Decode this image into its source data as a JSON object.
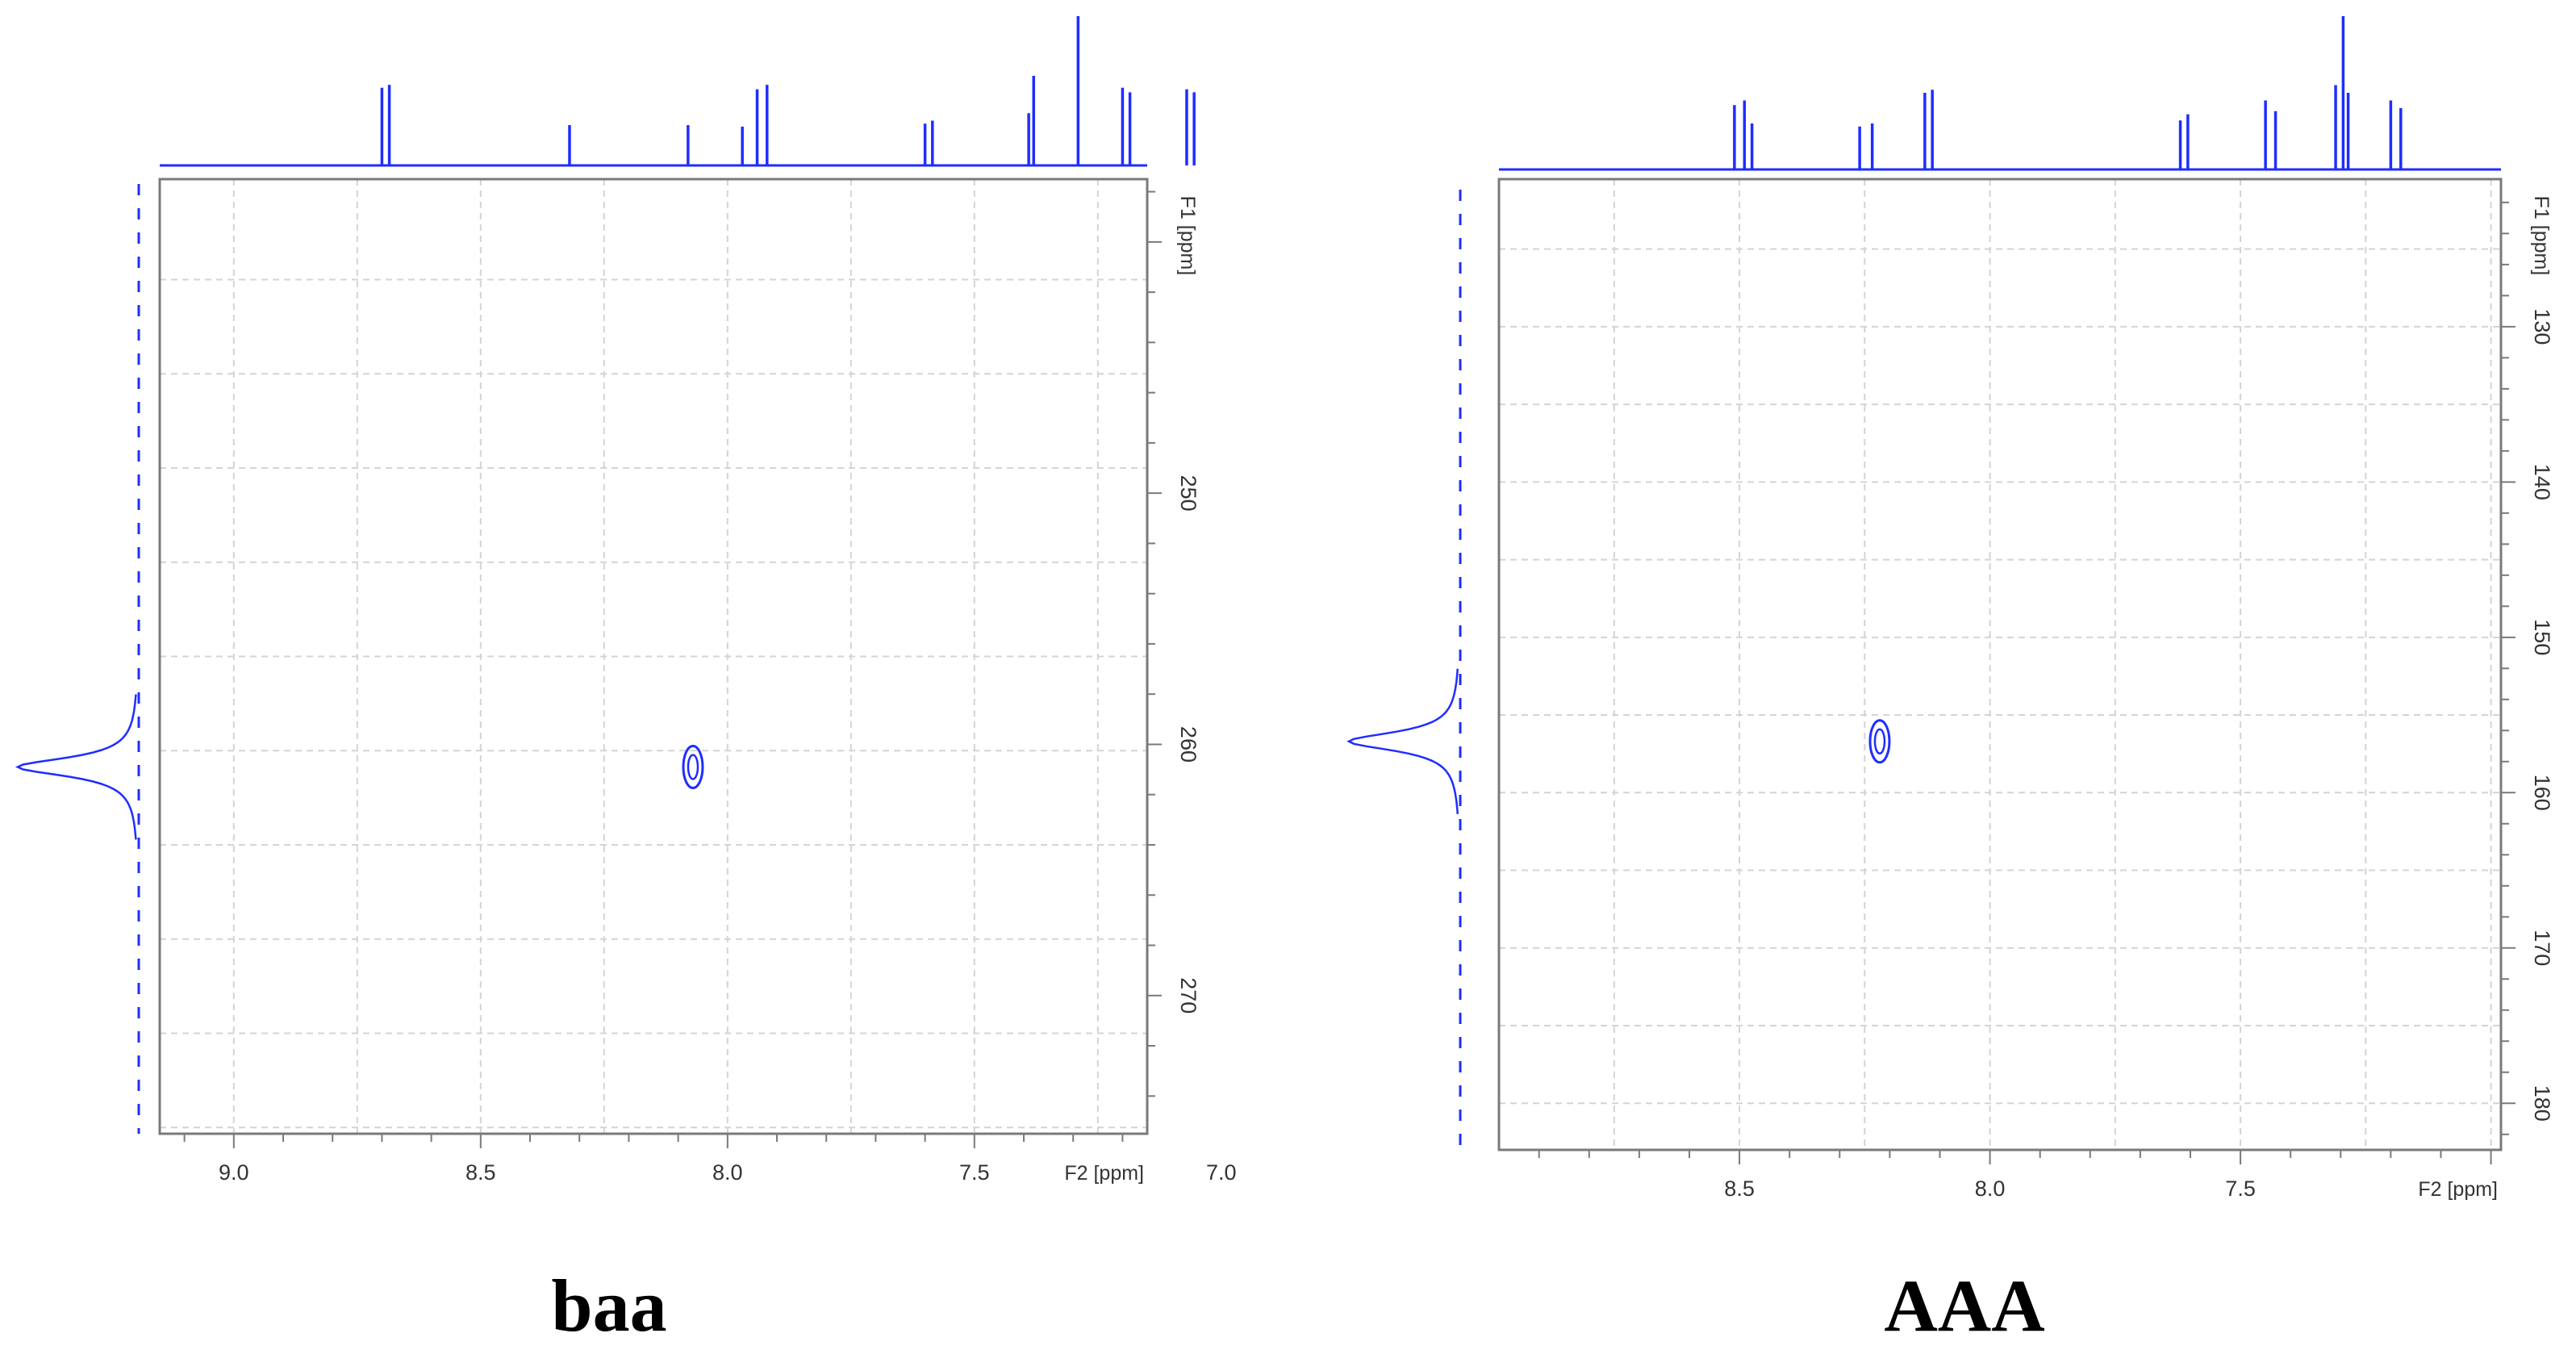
{
  "colors": {
    "trace": "#1f2dff",
    "frame": "#7a7a7a",
    "grid": "#d4d4d4",
    "tick_text": "#333333",
    "caption": "#000000"
  },
  "chart_data": [
    {
      "type": "contour",
      "name": "baa",
      "caption": "baa",
      "x_axis": {
        "label": "F2 [ppm]",
        "range": [
          9.15,
          7.15
        ],
        "reversed": true,
        "ticks": [
          9.0,
          8.5,
          8.0,
          7.5,
          7.0
        ],
        "tick_labels": [
          "9.0",
          "8.5",
          "8.0",
          "7.5",
          "7.0"
        ],
        "grid": [
          9.0,
          8.5,
          8.0,
          7.5,
          7.0,
          8.75,
          8.25,
          7.75,
          7.25,
          6.75
        ]
      },
      "y_axis": {
        "label": "F1 [ppm]",
        "range": [
          237.5,
          275.5
        ],
        "ticks": [
          250,
          260,
          270
        ],
        "tick_labels": [
          "250",
          "260",
          "270"
        ],
        "grid": [
          241.5,
          245.25,
          249,
          252.75,
          256.5,
          260.25,
          264,
          267.75,
          271.5,
          275.25
        ]
      },
      "grid": true,
      "cross_peaks": [
        {
          "x": 8.07,
          "y": 260.9
        }
      ],
      "top_projection": {
        "peaks": [
          {
            "x": 8.7,
            "h": 0.52
          },
          {
            "x": 8.685,
            "h": 0.54
          },
          {
            "x": 8.32,
            "h": 0.27
          },
          {
            "x": 8.08,
            "h": 0.27
          },
          {
            "x": 7.97,
            "h": 0.26
          },
          {
            "x": 7.94,
            "h": 0.51
          },
          {
            "x": 7.92,
            "h": 0.54
          },
          {
            "x": 7.6,
            "h": 0.28
          },
          {
            "x": 7.585,
            "h": 0.3
          },
          {
            "x": 7.39,
            "h": 0.35
          },
          {
            "x": 7.38,
            "h": 0.6
          },
          {
            "x": 7.29,
            "h": 1.0
          },
          {
            "x": 7.2,
            "h": 0.52
          },
          {
            "x": 7.185,
            "h": 0.49
          },
          {
            "x": 7.07,
            "h": 0.51
          },
          {
            "x": 7.055,
            "h": 0.49
          }
        ]
      },
      "side_projection": {
        "peaks": [
          {
            "y": 260.9,
            "h": 1.0
          }
        ]
      }
    },
    {
      "type": "contour",
      "name": "AAA",
      "caption": "AAA",
      "x_axis": {
        "label": "F2 [ppm]",
        "range": [
          8.98,
          6.98
        ],
        "reversed": true,
        "ticks": [
          8.5,
          8.0,
          7.5
        ],
        "tick_labels": [
          "8.5",
          "8.0",
          "7.5"
        ],
        "grid": [
          8.75,
          8.5,
          8.25,
          8.0,
          7.75,
          7.5,
          7.25,
          7.0
        ]
      },
      "y_axis": {
        "label": "F1 [ppm]",
        "range": [
          120.5,
          183.0
        ],
        "ticks": [
          130,
          140,
          150,
          160,
          170,
          180
        ],
        "tick_labels": [
          "130",
          "140",
          "150",
          "160",
          "170",
          "180"
        ],
        "grid": [
          125,
          130,
          135,
          140,
          145,
          150,
          155,
          160,
          165,
          170,
          175,
          180
        ]
      },
      "grid": true,
      "cross_peaks": [
        {
          "x": 8.22,
          "y": 156.7
        }
      ],
      "top_projection": {
        "peaks": [
          {
            "x": 8.51,
            "h": 0.42
          },
          {
            "x": 8.49,
            "h": 0.45
          },
          {
            "x": 8.475,
            "h": 0.3
          },
          {
            "x": 8.26,
            "h": 0.28
          },
          {
            "x": 8.235,
            "h": 0.3
          },
          {
            "x": 8.13,
            "h": 0.5
          },
          {
            "x": 8.115,
            "h": 0.52
          },
          {
            "x": 7.62,
            "h": 0.32
          },
          {
            "x": 7.605,
            "h": 0.36
          },
          {
            "x": 7.45,
            "h": 0.45
          },
          {
            "x": 7.43,
            "h": 0.38
          },
          {
            "x": 7.31,
            "h": 0.55
          },
          {
            "x": 7.295,
            "h": 1.0
          },
          {
            "x": 7.285,
            "h": 0.5
          },
          {
            "x": 7.2,
            "h": 0.45
          },
          {
            "x": 7.18,
            "h": 0.4
          }
        ]
      },
      "side_projection": {
        "peaks": [
          {
            "y": 156.7,
            "h": 1.0
          }
        ]
      }
    }
  ]
}
